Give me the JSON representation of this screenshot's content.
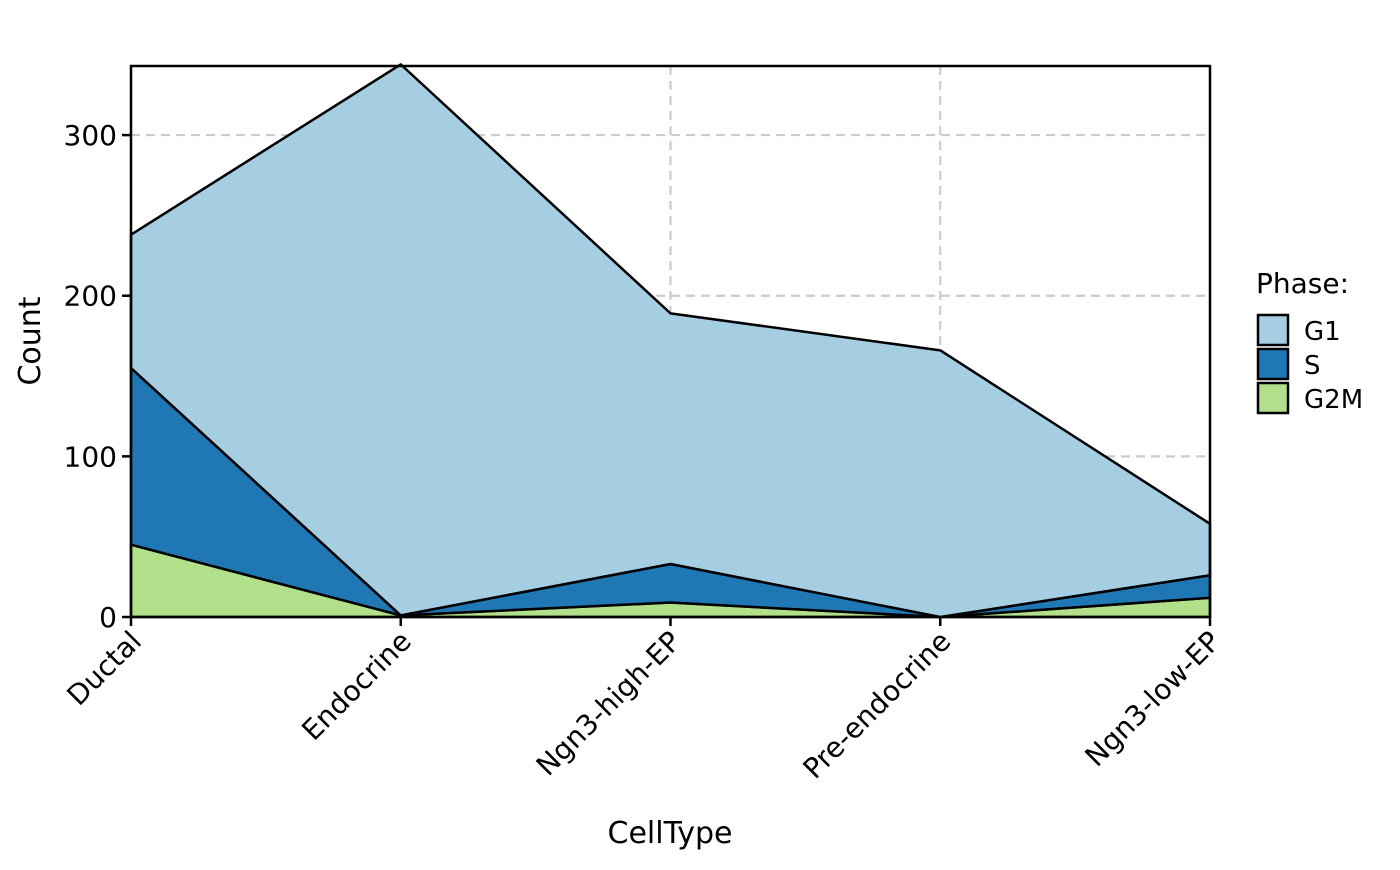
{
  "chart_data": {
    "type": "area",
    "stacked": true,
    "categories": [
      "Ductal",
      "Endocrine",
      "Ngn3-high-EP",
      "Pre-endocrine",
      "Ngn3-low-EP"
    ],
    "series": [
      {
        "name": "G2M",
        "color": "#b2df8a",
        "values": [
          45,
          1,
          9,
          0,
          12
        ]
      },
      {
        "name": "S",
        "color": "#1f78b4",
        "values": [
          110,
          0,
          24,
          0,
          14
        ]
      },
      {
        "name": "G1",
        "color": "#a6cee3",
        "values": [
          83,
          343,
          156,
          166,
          32
        ]
      }
    ],
    "xlabel": "CellType",
    "ylabel": "Count",
    "ylim": [
      0,
      343
    ],
    "yticks": [
      0,
      100,
      200,
      300
    ],
    "ytick_labels": [
      "0",
      "100",
      "200",
      "300"
    ],
    "grid": true,
    "grid_style": "dashed",
    "legend": {
      "title": "Phase:",
      "placement": "right",
      "entries": [
        "G1",
        "S",
        "G2M"
      ]
    }
  }
}
